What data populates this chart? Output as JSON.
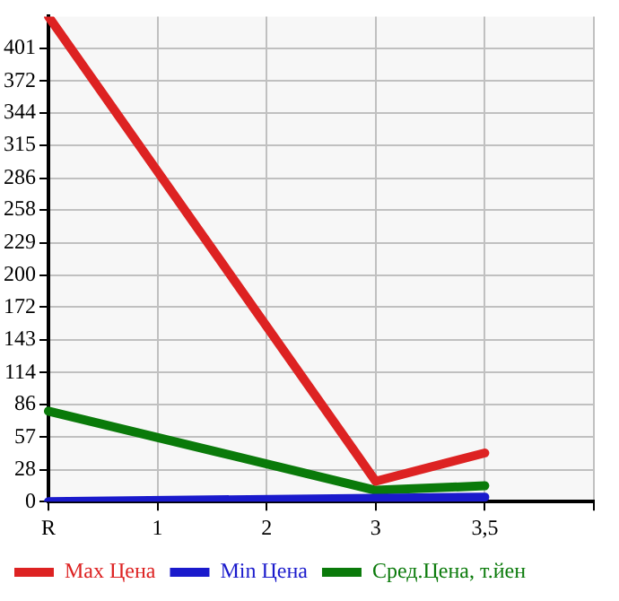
{
  "chart_data": {
    "type": "line",
    "categories": [
      "R",
      "1",
      "2",
      "3",
      "3,5",
      null
    ],
    "series": [
      {
        "name": "Max Цена",
        "color": "#dd2222",
        "values": [
          429,
          null,
          null,
          18,
          43,
          null
        ]
      },
      {
        "name": "Min Цена",
        "color": "#1a1acc",
        "values": [
          0,
          null,
          null,
          3,
          4,
          null
        ]
      },
      {
        "name": "Сред.Цена, т.йен",
        "color": "#0a7a0a",
        "values": [
          80,
          null,
          null,
          10,
          14,
          null
        ]
      }
    ],
    "ylim": [
      0,
      429
    ],
    "yticks": [
      0,
      28,
      57,
      86,
      114,
      143,
      172,
      200,
      229,
      258,
      286,
      315,
      344,
      372,
      401
    ],
    "grid": true,
    "legend": "bottom",
    "marker": "none",
    "line_style": "solid"
  }
}
